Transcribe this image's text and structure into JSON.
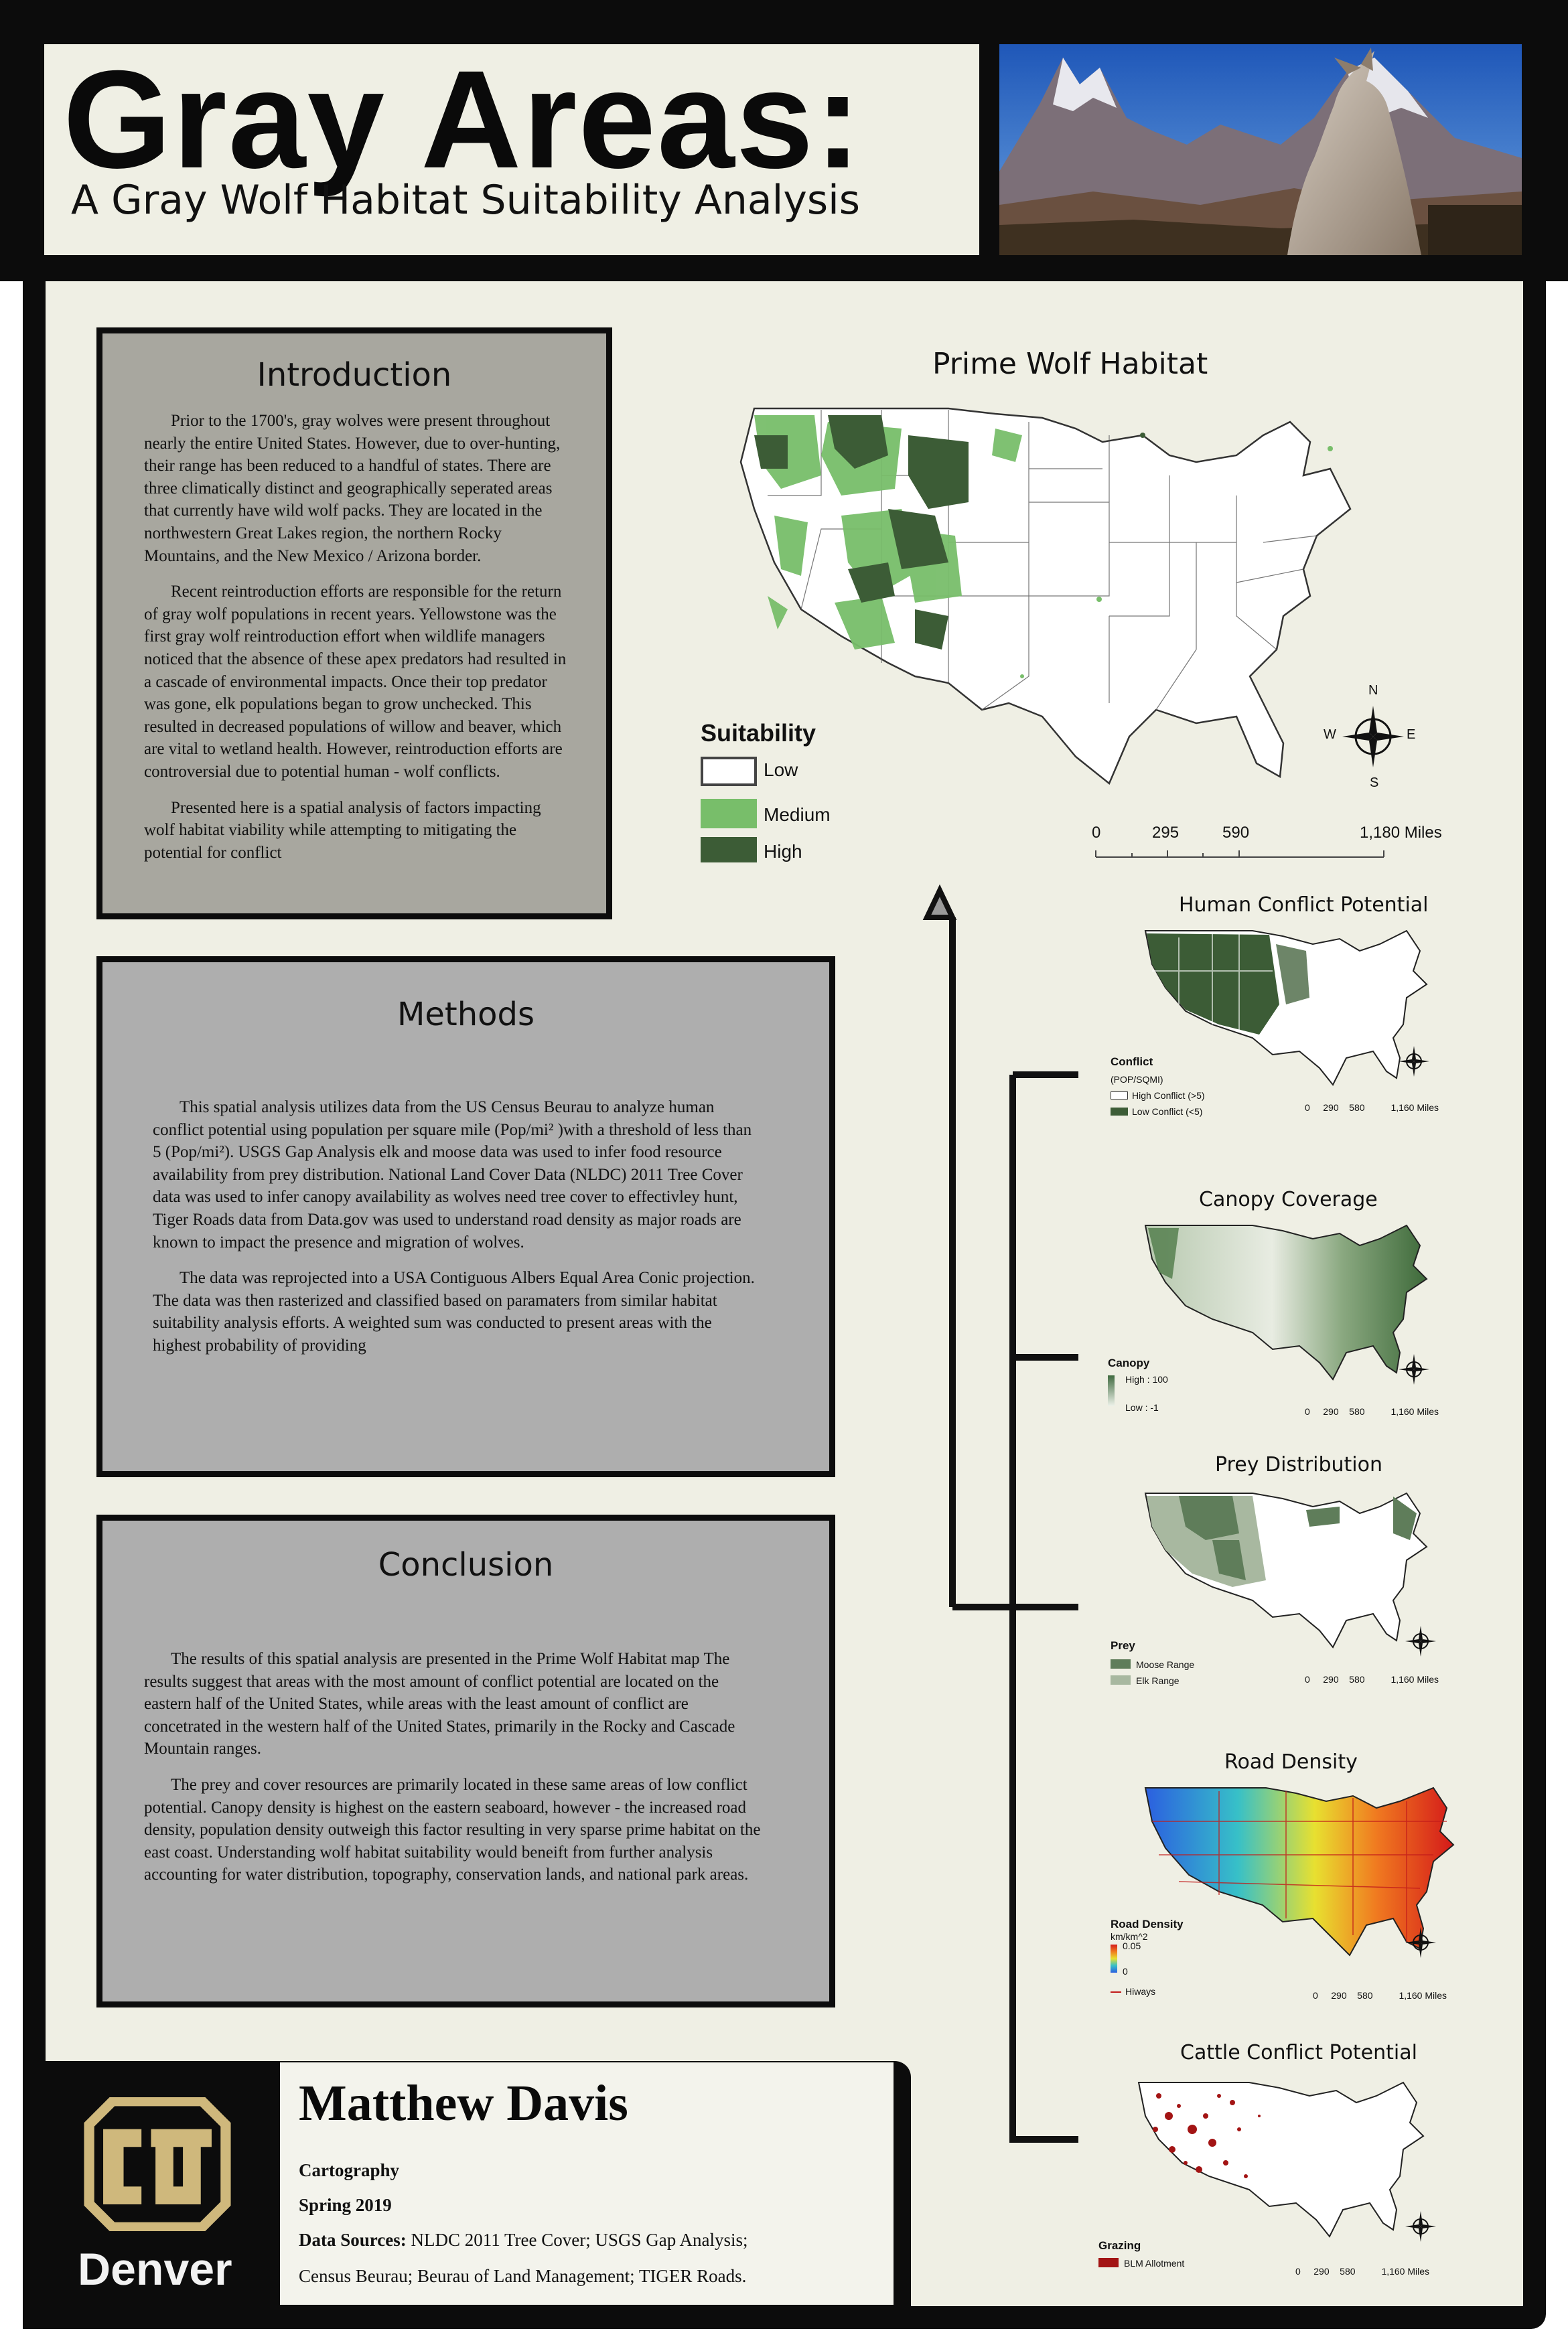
{
  "header": {
    "title": "Gray Areas:",
    "subtitle": "A Gray Wolf Habitat Suitability Analysis"
  },
  "introduction": {
    "heading": "Introduction",
    "paragraphs": [
      "Prior to the 1700's, gray wolves were present throughout nearly the entire United States. However, due to over-hunting, their range has been reduced to a handful of states. There are three climatically distinct and geographically seperated areas that currently have wild wolf packs. They are located in the northwestern Great Lakes region, the northern Rocky Mountains, and the New Mexico / Arizona border.",
      "Recent reintroduction efforts are responsible for the return of gray wolf populations in recent years. Yellowstone was the first gray wolf reintroduction effort when wildlife managers noticed that the absence of these apex predators had resulted in a cascade of environmental impacts. Once their top predator was gone, elk populations began to grow unchecked. This resulted in decreased populations of willow and beaver, which are vital to wetland health. However, reintroduction efforts are controversial due to potential human - wolf conflicts.",
      "Presented here is a spatial analysis of factors impacting wolf habitat viability while attempting to mitigating the potential for conflict"
    ]
  },
  "methods": {
    "heading": "Methods",
    "paragraphs": [
      "This spatial analysis utilizes data from the US Census Beurau to analyze human conflict potential using population per square mile (Pop/mi² )with a threshold of less than 5 (Pop/mi²). USGS Gap Analysis elk and moose data was used to infer food resource availability from prey distribution. National Land Cover Data (NLDC) 2011 Tree Cover data was used to infer canopy availability as wolves need tree cover to effectivley hunt, Tiger Roads data from Data.gov was used to understand road density as major roads are known to impact the presence and migration of wolves.",
      "The data was reprojected into a USA Contiguous Albers Equal Area Conic projection. The data was then rasterized and classified based on paramaters from similar habitat suitability analysis efforts. A weighted sum was conducted to present areas with the highest probability of providing"
    ]
  },
  "conclusion": {
    "heading": "Conclusion",
    "paragraphs": [
      "The results of this spatial analysis are presented in the Prime Wolf Habitat map The results suggest that areas with the most amount of conflict potential are located on the eastern half of the United States, while areas with the least amount of conflict are concetrated in the western half of the United States, primarily in the Rocky and Cascade Mountain ranges.",
      "The prey and cover resources are primarily located in these same areas of low conflict potential. Canopy density is highest on the eastern seaboard, however - the increased road density, population density outweigh this factor resulting in very sparse prime habitat on the east coast. Understanding wolf habitat suitability would beneift from further analysis accounting for water distribution, topography, conservation lands, and national park areas."
    ]
  },
  "footer": {
    "logo_text": "Denver",
    "author": "Matthew Davis",
    "course": "Cartography",
    "term": "Spring 2019",
    "sources_label": "Data Sources:",
    "sources_line1": " NLDC 2011 Tree Cover; USGS Gap Analysis;",
    "sources_line2": "Census Beurau; Beurau of Land Management; TIGER Roads."
  },
  "main_map": {
    "title": "Prime Wolf Habitat",
    "legend_title": "Suitability",
    "legend": [
      {
        "label": "Low",
        "color": "#ffffff"
      },
      {
        "label": "Medium",
        "color": "#78be6a"
      },
      {
        "label": "High",
        "color": "#3c5c36"
      }
    ],
    "scale_ticks": [
      "0",
      "295",
      "590",
      "1,180 Miles"
    ],
    "compass": {
      "n": "N",
      "e": "E",
      "s": "S",
      "w": "W"
    }
  },
  "small_maps": [
    {
      "title": "Human Conflict Potential",
      "legend_title": "Conflict",
      "legend_sub": "(POP/SQMI)",
      "legend": [
        {
          "label": "High Conflict (>5)",
          "color": "#ffffff"
        },
        {
          "label": "Low Conflict (<5)",
          "color": "#3c5c36"
        }
      ],
      "scale_ticks": [
        "0",
        "290",
        "580",
        "1,160 Miles"
      ]
    },
    {
      "title": "Canopy Coverage",
      "legend_title": "Canopy",
      "legend": [
        {
          "label": "High : 100",
          "color": "#3f6a3f"
        },
        {
          "label": "Low : -1",
          "color": "#eef2ea"
        }
      ],
      "scale_ticks": [
        "0",
        "290",
        "580",
        "1,160 Miles"
      ]
    },
    {
      "title": "Prey Distribution",
      "legend_title": "Prey",
      "legend": [
        {
          "label": "Moose Range",
          "color": "#5f7d5a"
        },
        {
          "label": "Elk Range",
          "color": "#a8b8a0"
        }
      ],
      "scale_ticks": [
        "0",
        "290",
        "580",
        "1,160 Miles"
      ]
    },
    {
      "title": "Road Density",
      "legend_title": "Road Density",
      "legend_sub": "km/km^2",
      "legend_high": "0.05",
      "legend_low": "0",
      "legend_line": "Hiways",
      "scale_ticks": [
        "0",
        "290",
        "580",
        "1,160 Miles"
      ]
    },
    {
      "title": "Cattle Conflict Potential",
      "legend_title": "Grazing",
      "legend": [
        {
          "label": "BLM Allotment",
          "color": "#a31414"
        }
      ],
      "scale_ticks": [
        "0",
        "290",
        "580",
        "1,160 Miles"
      ]
    }
  ]
}
